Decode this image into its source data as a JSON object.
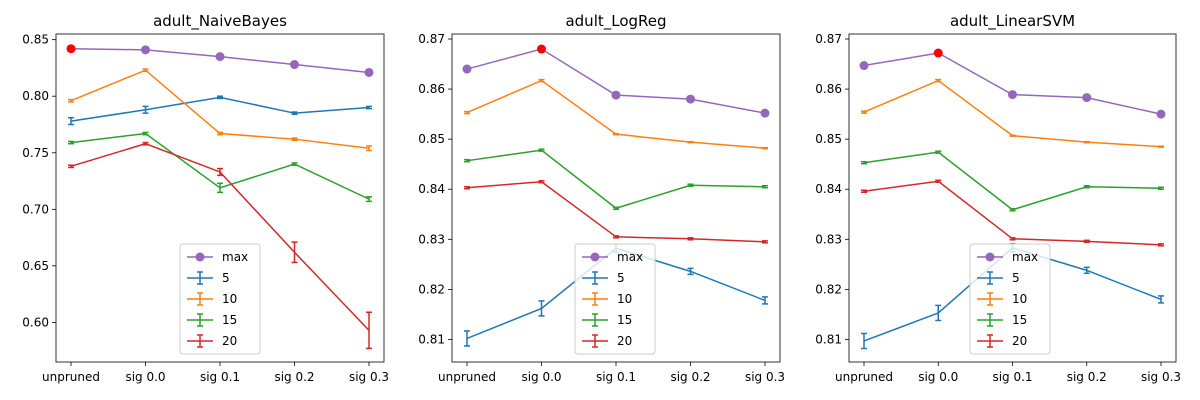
{
  "chart_data": [
    {
      "type": "line",
      "title": "adult_NaiveBayes",
      "xlabel": "",
      "ylabel": "",
      "categories": [
        "unpruned",
        "sig 0.0",
        "sig 0.1",
        "sig 0.2",
        "sig 0.3"
      ],
      "ylim": [
        0.565,
        0.855
      ],
      "yticks": [
        0.6,
        0.65,
        0.7,
        0.75,
        0.8,
        0.85
      ],
      "ytick_labels": [
        "0.60",
        "0.65",
        "0.70",
        "0.75",
        "0.80",
        "0.85"
      ],
      "max_series": {
        "name": "max",
        "color": "#9467bd",
        "values": [
          0.842,
          0.841,
          0.835,
          0.828,
          0.821
        ],
        "highlight_index": 0,
        "highlight_color": "#ff0000"
      },
      "series": [
        {
          "name": "5",
          "color": "#1f77b4",
          "values": [
            0.778,
            0.788,
            0.799,
            0.785,
            0.79
          ],
          "errors": [
            0.003,
            0.003,
            0.001,
            0.001,
            0.001
          ]
        },
        {
          "name": "10",
          "color": "#ff7f0e",
          "values": [
            0.796,
            0.823,
            0.767,
            0.762,
            0.754
          ],
          "errors": [
            0.001,
            0.001,
            0.001,
            0.001,
            0.002
          ]
        },
        {
          "name": "15",
          "color": "#2ca02c",
          "values": [
            0.759,
            0.767,
            0.719,
            0.74,
            0.709
          ],
          "errors": [
            0.001,
            0.001,
            0.004,
            0.001,
            0.002
          ]
        },
        {
          "name": "20",
          "color": "#d62728",
          "values": [
            0.738,
            0.758,
            0.733,
            0.662,
            0.593
          ],
          "errors": [
            0.001,
            0.001,
            0.003,
            0.009,
            0.016
          ]
        }
      ],
      "legend_loc": "lower center"
    },
    {
      "type": "line",
      "title": "adult_LogReg",
      "xlabel": "",
      "ylabel": "",
      "categories": [
        "unpruned",
        "sig 0.0",
        "sig 0.1",
        "sig 0.2",
        "sig 0.3"
      ],
      "ylim": [
        0.8055,
        0.871
      ],
      "yticks": [
        0.81,
        0.82,
        0.83,
        0.84,
        0.85,
        0.86,
        0.87
      ],
      "ytick_labels": [
        "0.81",
        "0.82",
        "0.83",
        "0.84",
        "0.85",
        "0.86",
        "0.87"
      ],
      "max_series": {
        "name": "max",
        "color": "#9467bd",
        "values": [
          0.864,
          0.868,
          0.8588,
          0.858,
          0.8552
        ],
        "highlight_index": 1,
        "highlight_color": "#ff0000"
      },
      "series": [
        {
          "name": "5",
          "color": "#1f77b4",
          "values": [
            0.8102,
            0.8162,
            0.8282,
            0.8236,
            0.8178
          ],
          "errors": [
            0.0015,
            0.0015,
            0.0008,
            0.0006,
            0.0007
          ]
        },
        {
          "name": "10",
          "color": "#ff7f0e",
          "values": [
            0.8553,
            0.8617,
            0.851,
            0.8494,
            0.8482
          ],
          "errors": [
            0.0002,
            0.0002,
            0.0001,
            0.0001,
            0.0001
          ]
        },
        {
          "name": "15",
          "color": "#2ca02c",
          "values": [
            0.8457,
            0.8478,
            0.8362,
            0.8408,
            0.8405
          ],
          "errors": [
            0.0002,
            0.0002,
            0.0002,
            0.0002,
            0.0002
          ]
        },
        {
          "name": "20",
          "color": "#d62728",
          "values": [
            0.8403,
            0.8415,
            0.8305,
            0.8301,
            0.8295
          ],
          "errors": [
            0.0002,
            0.0002,
            0.0002,
            0.0002,
            0.0002
          ]
        }
      ],
      "legend_loc": "lower center"
    },
    {
      "type": "line",
      "title": "adult_LinearSVM",
      "xlabel": "",
      "ylabel": "",
      "categories": [
        "unpruned",
        "sig 0.0",
        "sig 0.1",
        "sig 0.2",
        "sig 0.3"
      ],
      "ylim": [
        0.8055,
        0.871
      ],
      "yticks": [
        0.81,
        0.82,
        0.83,
        0.84,
        0.85,
        0.86,
        0.87
      ],
      "ytick_labels": [
        "0.81",
        "0.82",
        "0.83",
        "0.84",
        "0.85",
        "0.86",
        "0.87"
      ],
      "max_series": {
        "name": "max",
        "color": "#9467bd",
        "values": [
          0.8647,
          0.8672,
          0.8589,
          0.8583,
          0.855
        ],
        "highlight_index": 1,
        "highlight_color": "#ff0000"
      },
      "series": [
        {
          "name": "5",
          "color": "#1f77b4",
          "values": [
            0.8097,
            0.8153,
            0.8283,
            0.8238,
            0.818
          ],
          "errors": [
            0.0015,
            0.0015,
            0.0008,
            0.0006,
            0.0007
          ]
        },
        {
          "name": "10",
          "color": "#ff7f0e",
          "values": [
            0.8554,
            0.8617,
            0.8507,
            0.8494,
            0.8485
          ],
          "errors": [
            0.0002,
            0.0002,
            0.0001,
            0.0001,
            0.0001
          ]
        },
        {
          "name": "15",
          "color": "#2ca02c",
          "values": [
            0.8453,
            0.8474,
            0.8359,
            0.8405,
            0.8402
          ],
          "errors": [
            0.0002,
            0.0002,
            0.0002,
            0.0002,
            0.0002
          ]
        },
        {
          "name": "20",
          "color": "#d62728",
          "values": [
            0.8396,
            0.8416,
            0.8301,
            0.8296,
            0.8289
          ],
          "errors": [
            0.0002,
            0.0002,
            0.0002,
            0.0002,
            0.0002
          ]
        }
      ],
      "legend_loc": "lower center"
    }
  ]
}
